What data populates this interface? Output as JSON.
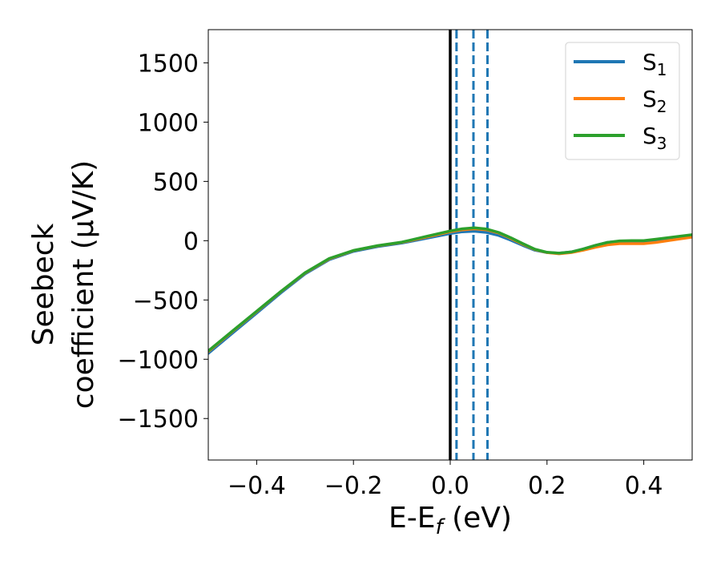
{
  "chart_data": {
    "type": "line",
    "xlabel": "E-E_f (eV)",
    "ylabel_line1": "Seebeck",
    "ylabel_line2": "coefficient  (μV/K)",
    "xlim": [
      -0.5,
      0.5
    ],
    "ylim": [
      -1850,
      1780
    ],
    "xticks": [
      -0.4,
      -0.2,
      0.0,
      0.2,
      0.4
    ],
    "xtick_labels": [
      "−0.4",
      "−0.2",
      "0.0",
      "0.2",
      "0.4"
    ],
    "yticks": [
      -1500,
      -1000,
      -500,
      0,
      500,
      1000,
      1500
    ],
    "ytick_labels": [
      "−1500",
      "−1000",
      "−500",
      "0",
      "500",
      "1000",
      "1500"
    ],
    "grid": false,
    "legend_position": "top-right",
    "vertical_lines": [
      {
        "x": 0.0,
        "style": "solid",
        "color": "#000000"
      },
      {
        "x": 0.013,
        "style": "dashed",
        "color": "#1f77b4"
      },
      {
        "x": 0.048,
        "style": "dashed",
        "color": "#1f77b4"
      },
      {
        "x": 0.077,
        "style": "dashed",
        "color": "#1f77b4"
      }
    ],
    "x": [
      -0.5,
      -0.45,
      -0.4,
      -0.35,
      -0.3,
      -0.25,
      -0.2,
      -0.15,
      -0.1,
      -0.05,
      0.0,
      0.025,
      0.05,
      0.075,
      0.1,
      0.125,
      0.15,
      0.175,
      0.2,
      0.225,
      0.25,
      0.275,
      0.3,
      0.325,
      0.35,
      0.375,
      0.4,
      0.425,
      0.45,
      0.5
    ],
    "series": [
      {
        "name": "S₁",
        "name_base": "S",
        "name_sub": "1",
        "color": "#1f77b4",
        "values": [
          -950,
          -780,
          -610,
          -440,
          -280,
          -160,
          -90,
          -50,
          -20,
          20,
          60,
          75,
          80,
          70,
          45,
          5,
          -40,
          -80,
          -100,
          -105,
          -95,
          -70,
          -40,
          -15,
          -5,
          -5,
          -5,
          5,
          15,
          40
        ]
      },
      {
        "name": "S₂",
        "name_base": "S",
        "name_sub": "2",
        "color": "#ff7f0e",
        "values": [
          -935,
          -765,
          -598,
          -430,
          -272,
          -153,
          -84,
          -44,
          -14,
          30,
          75,
          92,
          100,
          92,
          65,
          20,
          -30,
          -75,
          -100,
          -110,
          -100,
          -80,
          -55,
          -35,
          -25,
          -25,
          -25,
          -15,
          0,
          30
        ]
      },
      {
        "name": "S₃",
        "name_base": "S",
        "name_sub": "3",
        "color": "#2ca02c",
        "values": [
          -930,
          -762,
          -595,
          -428,
          -270,
          -150,
          -82,
          -42,
          -12,
          35,
          82,
          100,
          108,
          98,
          70,
          25,
          -25,
          -72,
          -98,
          -105,
          -95,
          -70,
          -40,
          -15,
          -2,
          0,
          0,
          12,
          25,
          50
        ]
      }
    ]
  }
}
